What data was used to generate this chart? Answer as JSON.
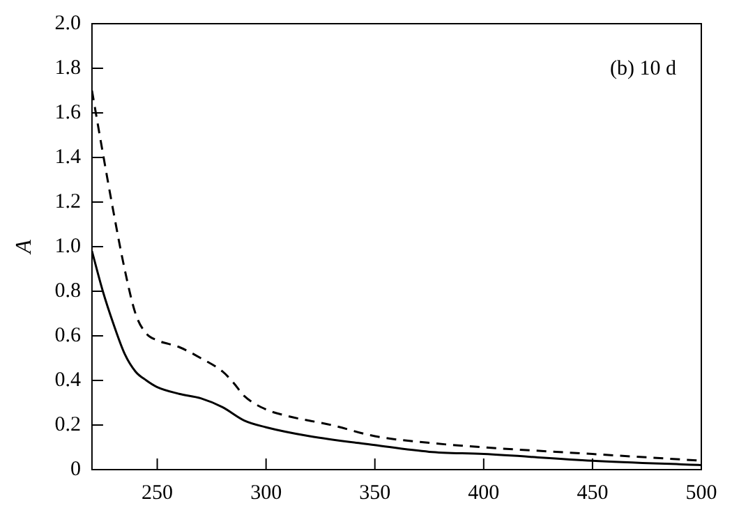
{
  "chart_data": {
    "type": "line",
    "ylabel": "A",
    "annotations": [
      "(b) 10 d"
    ],
    "xlim": [
      220,
      500
    ],
    "xticks": [
      250,
      300,
      350,
      400,
      450,
      500
    ],
    "ylim": [
      0,
      2
    ],
    "yticks": [
      0,
      0.2,
      0.4,
      0.6,
      0.8,
      {
        "value": 1,
        "label": "1.0"
      },
      1.2,
      1.4,
      1.6,
      1.8,
      {
        "value": 2,
        "label": "2.0"
      }
    ],
    "grid": false,
    "legend": false,
    "marker": "none",
    "series": [
      {
        "color": "#000000",
        "line_style": "solid",
        "x": [
          220,
          225,
          230,
          235,
          240,
          245,
          250,
          260,
          270,
          280,
          290,
          300,
          320,
          350,
          375,
          400,
          450,
          500
        ],
        "values": [
          0.98,
          0.8,
          0.65,
          0.52,
          0.44,
          0.4,
          0.37,
          0.34,
          0.32,
          0.28,
          0.22,
          0.19,
          0.15,
          0.11,
          0.08,
          0.07,
          0.04,
          0.02
        ]
      },
      {
        "color": "#000000",
        "line_style": "dashed",
        "x": [
          220,
          225,
          230,
          235,
          240,
          245,
          250,
          260,
          270,
          280,
          285,
          290,
          300,
          310,
          330,
          350,
          375,
          400,
          450,
          500
        ],
        "values": [
          1.7,
          1.42,
          1.15,
          0.9,
          0.7,
          0.61,
          0.58,
          0.55,
          0.5,
          0.44,
          0.39,
          0.33,
          0.27,
          0.24,
          0.2,
          0.15,
          0.12,
          0.1,
          0.07,
          0.04
        ]
      }
    ]
  }
}
